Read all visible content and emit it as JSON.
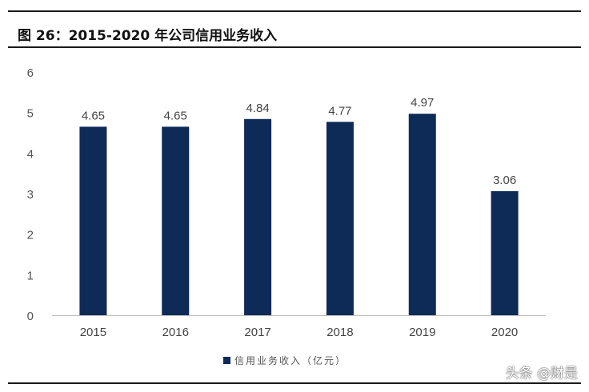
{
  "header": {
    "title": "图 26：2015-2020 年公司信用业务收入"
  },
  "chart_data": {
    "type": "bar",
    "categories": [
      "2015",
      "2016",
      "2017",
      "2018",
      "2019",
      "2020"
    ],
    "series": [
      {
        "name": "信用业务收入（亿元）",
        "values": [
          4.65,
          4.65,
          4.84,
          4.77,
          4.97,
          3.06
        ],
        "color": "#0e2a57"
      }
    ],
    "data_labels": [
      "4.65",
      "4.65",
      "4.84",
      "4.77",
      "4.97",
      "3.06"
    ],
    "yticks": [
      "0",
      "1",
      "2",
      "3",
      "4",
      "5",
      "6"
    ],
    "ylim": [
      0,
      6
    ],
    "grid": false,
    "legend_position": "bottom-center"
  },
  "watermark": "头条 @财是"
}
